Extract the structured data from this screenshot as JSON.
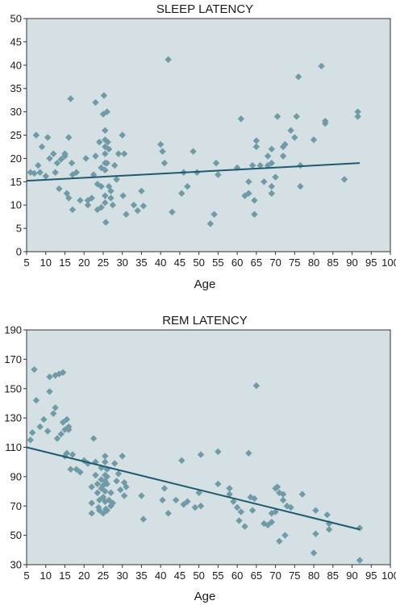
{
  "colors": {
    "plot_background": "#d4e0e3",
    "marker": "#6f9aa6",
    "trend_line": "#1f5a6e",
    "frame": "#333333"
  },
  "chart_data": [
    {
      "type": "scatter",
      "title": "SLEEP LATENCY",
      "xlabel": "Age",
      "ylabel": "",
      "xlim": [
        5,
        100
      ],
      "ylim": [
        0,
        50
      ],
      "x_ticks": [
        5,
        10,
        15,
        20,
        25,
        30,
        35,
        40,
        45,
        50,
        55,
        60,
        65,
        70,
        75,
        80,
        85,
        90,
        95,
        100
      ],
      "y_ticks": [
        0,
        5,
        10,
        15,
        20,
        25,
        30,
        35,
        40,
        45,
        50
      ],
      "grid": false,
      "trend_line": {
        "x": [
          5,
          92
        ],
        "y": [
          15.2,
          19.0
        ]
      },
      "points": [
        [
          6,
          17
        ],
        [
          7,
          16.8
        ],
        [
          7.5,
          25
        ],
        [
          8,
          18.5
        ],
        [
          8.5,
          17
        ],
        [
          9,
          22.5
        ],
        [
          10,
          16.2
        ],
        [
          10.5,
          24.5
        ],
        [
          11,
          20
        ],
        [
          12,
          21
        ],
        [
          12.5,
          17
        ],
        [
          13,
          19
        ],
        [
          13.5,
          13.5
        ],
        [
          14,
          19.8
        ],
        [
          15,
          20.5
        ],
        [
          15,
          21
        ],
        [
          15.5,
          12.5
        ],
        [
          16,
          24.5
        ],
        [
          16,
          11.5
        ],
        [
          16.5,
          32.8
        ],
        [
          16.8,
          19
        ],
        [
          17,
          16.5
        ],
        [
          17,
          9
        ],
        [
          18,
          17
        ],
        [
          19,
          11
        ],
        [
          20.5,
          20
        ],
        [
          21,
          11
        ],
        [
          21,
          10
        ],
        [
          22,
          11.5
        ],
        [
          22.5,
          16.5
        ],
        [
          23,
          32
        ],
        [
          23,
          20.5
        ],
        [
          23.5,
          14.5
        ],
        [
          23.5,
          9
        ],
        [
          24,
          23.5
        ],
        [
          24.5,
          18
        ],
        [
          24.5,
          14
        ],
        [
          24.5,
          9.5
        ],
        [
          25,
          29.5
        ],
        [
          25.2,
          33.5
        ],
        [
          25.5,
          26
        ],
        [
          25.5,
          24
        ],
        [
          25.5,
          22.5
        ],
        [
          25.5,
          21
        ],
        [
          25.5,
          19
        ],
        [
          25.5,
          17.5
        ],
        [
          25.5,
          12
        ],
        [
          25.5,
          10.5
        ],
        [
          25.7,
          6.3
        ],
        [
          26,
          30
        ],
        [
          26,
          19
        ],
        [
          26.2,
          23.5
        ],
        [
          26.5,
          22
        ],
        [
          26.5,
          14
        ],
        [
          27,
          13
        ],
        [
          27,
          11.5
        ],
        [
          27.5,
          10
        ],
        [
          28,
          18.5
        ],
        [
          28.5,
          15.5
        ],
        [
          29,
          21
        ],
        [
          30,
          25
        ],
        [
          30.2,
          12
        ],
        [
          30.5,
          21
        ],
        [
          31,
          8
        ],
        [
          33,
          10
        ],
        [
          34,
          8.8
        ],
        [
          35,
          13
        ],
        [
          35.5,
          9.8
        ],
        [
          40,
          23
        ],
        [
          40.5,
          21.5
        ],
        [
          41,
          19
        ],
        [
          42,
          41.2
        ],
        [
          43,
          8.5
        ],
        [
          45.5,
          12.5
        ],
        [
          46,
          17
        ],
        [
          47,
          14
        ],
        [
          48.5,
          21.5
        ],
        [
          49.5,
          17
        ],
        [
          53,
          6
        ],
        [
          54,
          8
        ],
        [
          54.5,
          19
        ],
        [
          55,
          16.5
        ],
        [
          60,
          18
        ],
        [
          61,
          28.5
        ],
        [
          62,
          12
        ],
        [
          63,
          15
        ],
        [
          63,
          12.5
        ],
        [
          64,
          18.5
        ],
        [
          64.5,
          11
        ],
        [
          64.5,
          8
        ],
        [
          65,
          23.8
        ],
        [
          65,
          22.5
        ],
        [
          66,
          18.5
        ],
        [
          67,
          15
        ],
        [
          68,
          20.5
        ],
        [
          68,
          18.5
        ],
        [
          69,
          22
        ],
        [
          69,
          19
        ],
        [
          69,
          14
        ],
        [
          69,
          12.5
        ],
        [
          70,
          16
        ],
        [
          70.5,
          29
        ],
        [
          72,
          22.5
        ],
        [
          72,
          20.5
        ],
        [
          72.5,
          23
        ],
        [
          74,
          26
        ],
        [
          75,
          24.5
        ],
        [
          75.5,
          29
        ],
        [
          76,
          37.5
        ],
        [
          76.5,
          18.5
        ],
        [
          76.5,
          14
        ],
        [
          80,
          24
        ],
        [
          82,
          39.8
        ],
        [
          83,
          28
        ],
        [
          83,
          27.5
        ],
        [
          88,
          15.5
        ],
        [
          91.5,
          30
        ],
        [
          91.5,
          29
        ]
      ]
    },
    {
      "type": "scatter",
      "title": "REM LATENCY",
      "xlabel": "Age",
      "ylabel": "",
      "xlim": [
        5,
        100
      ],
      "ylim": [
        30,
        190
      ],
      "x_ticks": [
        5,
        10,
        15,
        20,
        25,
        30,
        35,
        40,
        45,
        50,
        55,
        60,
        65,
        70,
        75,
        80,
        85,
        90,
        95,
        100
      ],
      "y_ticks": [
        30,
        50,
        70,
        90,
        110,
        130,
        150,
        170,
        190
      ],
      "grid": false,
      "trend_line": {
        "x": [
          5,
          92
        ],
        "y": [
          110,
          54
        ]
      },
      "points": [
        [
          6,
          115
        ],
        [
          6.5,
          120
        ],
        [
          7,
          163
        ],
        [
          7.5,
          142
        ],
        [
          8.5,
          124
        ],
        [
          9.5,
          129
        ],
        [
          10.5,
          121
        ],
        [
          11,
          148
        ],
        [
          11,
          158
        ],
        [
          12,
          133
        ],
        [
          12.5,
          159
        ],
        [
          12.5,
          137
        ],
        [
          13,
          116
        ],
        [
          13.5,
          160
        ],
        [
          14,
          119
        ],
        [
          14.5,
          161
        ],
        [
          14.5,
          127
        ],
        [
          15,
          122
        ],
        [
          15,
          104
        ],
        [
          15.5,
          129
        ],
        [
          15.5,
          106
        ],
        [
          16,
          124
        ],
        [
          16,
          122
        ],
        [
          16.5,
          95
        ],
        [
          17,
          105
        ],
        [
          18,
          95
        ],
        [
          19,
          93
        ],
        [
          20,
          101
        ],
        [
          21,
          99
        ],
        [
          22,
          83
        ],
        [
          22,
          72
        ],
        [
          22,
          65
        ],
        [
          22.5,
          116
        ],
        [
          23,
          100
        ],
        [
          23,
          91
        ],
        [
          23.5,
          85
        ],
        [
          23.5,
          79
        ],
        [
          23.8,
          69
        ],
        [
          24,
          74
        ],
        [
          24,
          67
        ],
        [
          24.5,
          96
        ],
        [
          24.5,
          88
        ],
        [
          24.5,
          82
        ],
        [
          25,
          84
        ],
        [
          25,
          76
        ],
        [
          25,
          65
        ],
        [
          25.5,
          104
        ],
        [
          25.5,
          100
        ],
        [
          25.5,
          91
        ],
        [
          25.5,
          87
        ],
        [
          25.5,
          80
        ],
        [
          25.5,
          73
        ],
        [
          25.7,
          68
        ],
        [
          26,
          95
        ],
        [
          26,
          90
        ],
        [
          26,
          85
        ],
        [
          26,
          67
        ],
        [
          26.5,
          74
        ],
        [
          27,
          79
        ],
        [
          27,
          70
        ],
        [
          27.5,
          72
        ],
        [
          28,
          99
        ],
        [
          28.5,
          87
        ],
        [
          29,
          92
        ],
        [
          29.5,
          81
        ],
        [
          30,
          104
        ],
        [
          30.5,
          77
        ],
        [
          30.5,
          86
        ],
        [
          31,
          83
        ],
        [
          35,
          77
        ],
        [
          35.5,
          61
        ],
        [
          40.5,
          74
        ],
        [
          41,
          82
        ],
        [
          42,
          65
        ],
        [
          44,
          74
        ],
        [
          45.5,
          101
        ],
        [
          46,
          71
        ],
        [
          47,
          73
        ],
        [
          49,
          69
        ],
        [
          50,
          79
        ],
        [
          50.5,
          70
        ],
        [
          50.5,
          105
        ],
        [
          55,
          107
        ],
        [
          55,
          85
        ],
        [
          58,
          82
        ],
        [
          58,
          78
        ],
        [
          59,
          73
        ],
        [
          60,
          69
        ],
        [
          60.5,
          60
        ],
        [
          61,
          66
        ],
        [
          62,
          56
        ],
        [
          63,
          106
        ],
        [
          63.5,
          76
        ],
        [
          64,
          67
        ],
        [
          64.5,
          75
        ],
        [
          65,
          152
        ],
        [
          67,
          58
        ],
        [
          68,
          57
        ],
        [
          69,
          65
        ],
        [
          69,
          59
        ],
        [
          70,
          82
        ],
        [
          70,
          66
        ],
        [
          70.5,
          83
        ],
        [
          71,
          79
        ],
        [
          71,
          46
        ],
        [
          72,
          78
        ],
        [
          72,
          74
        ],
        [
          72.5,
          50
        ],
        [
          73,
          70
        ],
        [
          74,
          69
        ],
        [
          77,
          78
        ],
        [
          80,
          38
        ],
        [
          80.5,
          67
        ],
        [
          80.5,
          51
        ],
        [
          83.5,
          64
        ],
        [
          84,
          58
        ],
        [
          84,
          54
        ],
        [
          92,
          55
        ],
        [
          92,
          33
        ]
      ]
    }
  ]
}
